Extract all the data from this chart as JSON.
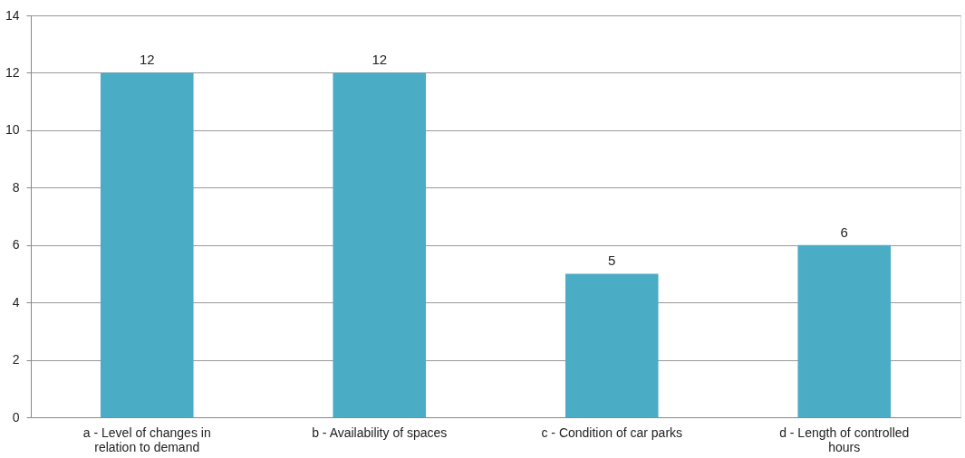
{
  "chart_data": {
    "type": "bar",
    "categories": [
      "a - Level of changes in relation to demand",
      "b - Availability of spaces",
      "c - Condition of car parks",
      "d - Length of controlled hours"
    ],
    "values": [
      12,
      12,
      5,
      6
    ],
    "color": "#4bacc6",
    "ylim": [
      0,
      14
    ],
    "yticks": [
      0,
      2,
      4,
      6,
      8,
      10,
      12,
      14
    ],
    "grid": "y",
    "data_labels": true
  }
}
